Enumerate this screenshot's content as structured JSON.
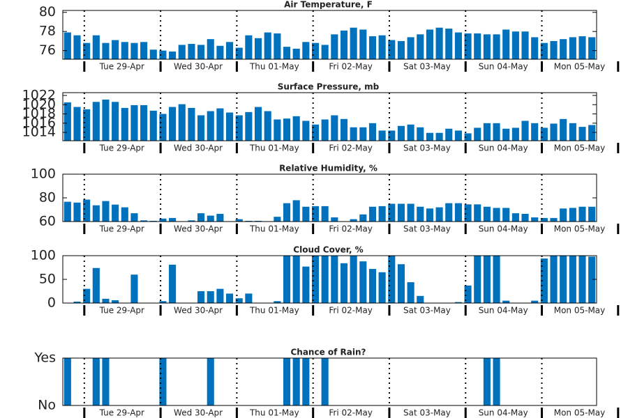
{
  "chart_data": [
    {
      "type": "bar",
      "title": "Air Temperature, F",
      "color": "#0072bd",
      "categories": [
        null,
        null,
        null,
        null,
        null,
        null,
        "Tue 29-Apr",
        null,
        null,
        null,
        null,
        null,
        null,
        null,
        "Wed 30-Apr",
        null,
        null,
        null,
        null,
        null,
        null,
        null,
        "Thu 01-May",
        null,
        null,
        null,
        null,
        null,
        null,
        null,
        "Fri 02-May",
        null,
        null,
        null,
        null,
        null,
        null,
        null,
        "Sat 03-May",
        null,
        null,
        null,
        null,
        null,
        null,
        null,
        "Sun 04-May",
        null,
        null,
        null,
        null,
        null,
        null,
        null,
        "Mon 05-May",
        null
      ],
      "values": [
        77.9,
        77.6,
        76.8,
        77.6,
        76.8,
        77.1,
        76.9,
        76.8,
        76.9,
        76.1,
        76.0,
        75.9,
        76.6,
        76.7,
        76.6,
        77.2,
        76.5,
        76.9,
        76.3,
        77.6,
        77.3,
        77.9,
        77.8,
        76.4,
        76.2,
        76.9,
        76.8,
        76.6,
        77.7,
        78.1,
        78.4,
        78.2,
        77.5,
        77.6,
        77.1,
        77.0,
        77.4,
        77.7,
        78.2,
        78.4,
        78.3,
        77.9,
        77.8,
        77.8,
        77.7,
        77.7,
        78.2,
        78.0,
        78.0,
        77.4,
        76.8,
        77.0,
        77.2,
        77.4,
        77.5,
        77.4
      ],
      "ylim": [
        75.1,
        80.2
      ],
      "yticks": [
        76,
        78,
        80
      ]
    },
    {
      "type": "bar",
      "title": "Surface Pressure, mb",
      "color": "#0072bd",
      "categories": [
        null,
        null,
        null,
        null,
        null,
        null,
        "Tue 29-Apr",
        null,
        null,
        null,
        null,
        null,
        null,
        null,
        "Wed 30-Apr",
        null,
        null,
        null,
        null,
        null,
        null,
        null,
        "Thu 01-May",
        null,
        null,
        null,
        null,
        null,
        null,
        null,
        "Fri 02-May",
        null,
        null,
        null,
        null,
        null,
        null,
        null,
        "Sat 03-May",
        null,
        null,
        null,
        null,
        null,
        null,
        null,
        "Sun 04-May",
        null,
        null,
        null,
        null,
        null,
        null,
        null,
        "Mon 05-May",
        null
      ],
      "values": [
        1020.5,
        1019.5,
        1019.0,
        1020.6,
        1021.1,
        1020.6,
        1019.3,
        1019.9,
        1019.9,
        1018.7,
        1018.0,
        1019.5,
        1020.1,
        1019.3,
        1017.7,
        1018.6,
        1019.2,
        1018.3,
        1017.7,
        1018.4,
        1019.5,
        1018.6,
        1016.8,
        1017.0,
        1017.5,
        1016.5,
        1015.7,
        1016.8,
        1017.7,
        1016.9,
        1015.1,
        1015.1,
        1016.0,
        1014.4,
        1014.4,
        1015.4,
        1015.7,
        1015.1,
        1013.9,
        1013.9,
        1014.8,
        1014.4,
        1013.8,
        1015.0,
        1016.0,
        1016.0,
        1014.8,
        1015.0,
        1016.5,
        1016.0,
        1015.0,
        1015.9,
        1016.9,
        1016.0,
        1015.2,
        1015.6
      ],
      "ylim": [
        1012.2,
        1022.6
      ],
      "yticks": [
        1014,
        1016,
        1018,
        1020,
        1022
      ]
    },
    {
      "type": "bar",
      "title": "Relative Humidity, %",
      "color": "#0072bd",
      "categories": [
        null,
        null,
        null,
        null,
        null,
        null,
        "Tue 29-Apr",
        null,
        null,
        null,
        null,
        null,
        null,
        null,
        "Wed 30-Apr",
        null,
        null,
        null,
        null,
        null,
        null,
        null,
        "Thu 01-May",
        null,
        null,
        null,
        null,
        null,
        null,
        null,
        "Fri 02-May",
        null,
        null,
        null,
        null,
        null,
        null,
        null,
        "Sat 03-May",
        null,
        null,
        null,
        null,
        null,
        null,
        null,
        "Sun 04-May",
        null,
        null,
        null,
        null,
        null,
        null,
        null,
        "Mon 05-May",
        null
      ],
      "values": [
        76.7,
        76,
        78.5,
        73.7,
        77.3,
        74.3,
        72,
        67,
        61,
        60.6,
        62.5,
        63,
        60,
        61,
        67,
        65,
        66.5,
        60,
        62,
        60.6,
        60.6,
        60,
        64,
        75.5,
        78,
        72.5,
        73,
        73,
        63.5,
        60,
        62,
        66,
        72.5,
        73,
        75,
        75,
        75,
        72.5,
        71,
        72,
        75.5,
        75.5,
        74.5,
        74.5,
        72.5,
        71.5,
        71.5,
        67,
        66.5,
        63.5,
        63,
        63,
        71,
        71.5,
        72.5,
        72.5
      ],
      "ylim": [
        60,
        100
      ],
      "yticks": [
        60,
        80,
        100
      ]
    },
    {
      "type": "bar",
      "title": "Cloud Cover, %",
      "color": "#0072bd",
      "categories": [
        null,
        null,
        null,
        null,
        null,
        null,
        "Tue 29-Apr",
        null,
        null,
        null,
        null,
        null,
        null,
        null,
        "Wed 30-Apr",
        null,
        null,
        null,
        null,
        null,
        null,
        null,
        "Thu 01-May",
        null,
        null,
        null,
        null,
        null,
        null,
        null,
        "Fri 02-May",
        null,
        null,
        null,
        null,
        null,
        null,
        null,
        "Sat 03-May",
        null,
        null,
        null,
        null,
        null,
        null,
        null,
        "Sun 04-May",
        null,
        null,
        null,
        null,
        null,
        null,
        null,
        "Mon 05-May",
        null
      ],
      "values": [
        0,
        3,
        30,
        74,
        9,
        6,
        0,
        60,
        0,
        0,
        4,
        81,
        0,
        0,
        25,
        25,
        30,
        20,
        10,
        20,
        0,
        0,
        4,
        100,
        100,
        77,
        100,
        100,
        100,
        84,
        100,
        88,
        72,
        65,
        100,
        82,
        44,
        15,
        0,
        0,
        0,
        2,
        37,
        100,
        100,
        100,
        5,
        0,
        0,
        5,
        94,
        100,
        100,
        100,
        100,
        98
      ],
      "ylim": [
        0,
        100
      ],
      "yticks": [
        0,
        50,
        100
      ]
    },
    {
      "type": "bar",
      "title": "Chance of Rain?",
      "color": "#0072bd",
      "categories": [
        null,
        null,
        null,
        null,
        null,
        null,
        "Tue 29-Apr",
        null,
        null,
        null,
        null,
        null,
        null,
        null,
        "Wed 30-Apr",
        null,
        null,
        null,
        null,
        null,
        null,
        null,
        "Thu 01-May",
        null,
        null,
        null,
        null,
        null,
        null,
        null,
        "Fri 02-May",
        null,
        null,
        null,
        null,
        null,
        null,
        null,
        "Sat 03-May",
        null,
        null,
        null,
        null,
        null,
        null,
        null,
        "Sun 04-May",
        null,
        null,
        null,
        null,
        null,
        null,
        null,
        "Mon 05-May",
        null
      ],
      "values": [
        1,
        0,
        0,
        1,
        1,
        0,
        0,
        0,
        0,
        0,
        1,
        0,
        0,
        0,
        0,
        1,
        0,
        0,
        0,
        0,
        0,
        0,
        0,
        1,
        1,
        1,
        0,
        1,
        0,
        0,
        0,
        0,
        0,
        0,
        0,
        0,
        0,
        0,
        0,
        0,
        0,
        0,
        0,
        0,
        1,
        1,
        0,
        0,
        0,
        0,
        0,
        0,
        0,
        0,
        0,
        0
      ],
      "ylim": [
        0,
        1
      ],
      "yticks": [
        {
          "value": 0,
          "label": "No"
        },
        {
          "value": 1,
          "label": "Yes"
        }
      ]
    }
  ]
}
